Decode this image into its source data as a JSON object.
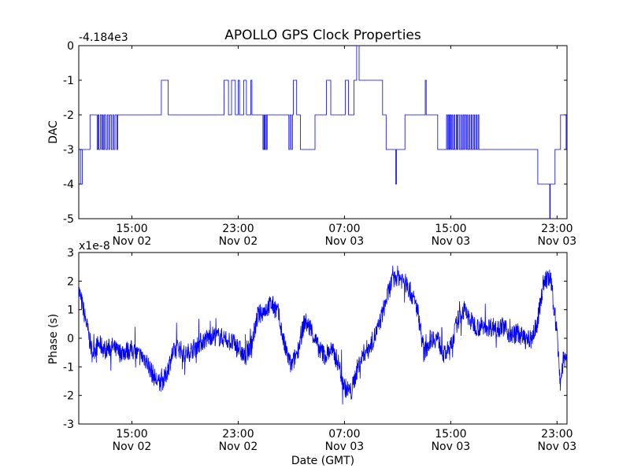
{
  "chart_data": [
    {
      "type": "line",
      "title": "APOLLO GPS Clock Properties",
      "offset_text": "-4.184e3",
      "ylabel": "DAC",
      "xlabel": "",
      "ylim": [
        -5,
        0
      ],
      "xlim": [
        "2012-11-02 11:00",
        "2012-11-03 23:45"
      ],
      "xticks": [
        {
          "x": "2012-11-02 15:00",
          "time": "15:00",
          "date": "Nov 02"
        },
        {
          "x": "2012-11-02 23:00",
          "time": "23:00",
          "date": "Nov 02"
        },
        {
          "x": "2012-11-03 07:00",
          "time": "07:00",
          "date": "Nov 03"
        },
        {
          "x": "2012-11-03 15:00",
          "time": "15:00",
          "date": "Nov 03"
        },
        {
          "x": "2012-11-03 23:00",
          "time": "23:00",
          "date": "Nov 03"
        }
      ],
      "yticks": [
        "0",
        "-1",
        "-2",
        "-3",
        "-4",
        "-5"
      ],
      "series": [
        {
          "color": "#0000ff",
          "step": true,
          "points": [
            [
              "2012-11-02 11:00",
              -3
            ],
            [
              "2012-11-02 11:08",
              -4
            ],
            [
              "2012-11-02 11:16",
              -3
            ],
            [
              "2012-11-02 11:45",
              -3
            ],
            [
              "2012-11-02 11:51",
              -2
            ],
            [
              "2012-11-02 12:19",
              -2
            ],
            [
              "2012-11-02 12:23",
              -3
            ],
            [
              "2012-11-02 12:27",
              -2
            ],
            [
              "2012-11-02 12:31",
              -3
            ],
            [
              "2012-11-02 12:37",
              -2
            ],
            [
              "2012-11-02 12:43",
              -3
            ],
            [
              "2012-11-02 12:47",
              -2
            ],
            [
              "2012-11-02 12:51",
              -3
            ],
            [
              "2012-11-02 12:56",
              -2
            ],
            [
              "2012-11-02 13:02",
              -3
            ],
            [
              "2012-11-02 13:09",
              -2
            ],
            [
              "2012-11-02 13:15",
              -3
            ],
            [
              "2012-11-02 13:20",
              -2
            ],
            [
              "2012-11-02 13:27",
              -3
            ],
            [
              "2012-11-02 13:33",
              -2
            ],
            [
              "2012-11-02 13:38",
              -3
            ],
            [
              "2012-11-02 13:44",
              -2
            ],
            [
              "2012-11-02 13:52",
              -3
            ],
            [
              "2012-11-02 13:56",
              -2
            ],
            [
              "2012-11-02 17:09",
              -2
            ],
            [
              "2012-11-02 17:13",
              -1
            ],
            [
              "2012-11-02 17:40",
              -1
            ],
            [
              "2012-11-02 17:44",
              -2
            ],
            [
              "2012-11-02 21:51",
              -2
            ],
            [
              "2012-11-02 21:56",
              -1
            ],
            [
              "2012-11-02 22:12",
              -1
            ],
            [
              "2012-11-02 22:16",
              -2
            ],
            [
              "2012-11-02 22:26",
              -2
            ],
            [
              "2012-11-02 22:30",
              -1
            ],
            [
              "2012-11-02 22:41",
              -1
            ],
            [
              "2012-11-02 22:47",
              -2
            ],
            [
              "2012-11-02 22:56",
              -2
            ],
            [
              "2012-11-02 23:00",
              -1
            ],
            [
              "2012-11-02 23:06",
              -2
            ],
            [
              "2012-11-02 23:21",
              -2
            ],
            [
              "2012-11-02 23:25",
              -1
            ],
            [
              "2012-11-02 23:31",
              -1
            ],
            [
              "2012-11-02 23:37",
              -2
            ],
            [
              "2012-11-02 23:51",
              -2
            ],
            [
              "2012-11-02 23:57",
              -1
            ],
            [
              "2012-11-03 00:02",
              -2
            ],
            [
              "2012-11-03 00:48",
              -2
            ],
            [
              "2012-11-03 00:52",
              -3
            ],
            [
              "2012-11-03 00:56",
              -2
            ],
            [
              "2012-11-03 00:59",
              -3
            ],
            [
              "2012-11-03 01:03",
              -2
            ],
            [
              "2012-11-03 01:07",
              -3
            ],
            [
              "2012-11-03 01:11",
              -2
            ],
            [
              "2012-11-03 02:45",
              -2
            ],
            [
              "2012-11-03 02:49",
              -3
            ],
            [
              "2012-11-03 02:54",
              -2
            ],
            [
              "2012-11-03 03:00",
              -3
            ],
            [
              "2012-11-03 03:05",
              -2
            ],
            [
              "2012-11-03 03:09",
              -1
            ],
            [
              "2012-11-03 03:18",
              -1
            ],
            [
              "2012-11-03 03:24",
              -2
            ],
            [
              "2012-11-03 03:37",
              -2
            ],
            [
              "2012-11-03 03:41",
              -3
            ],
            [
              "2012-11-03 04:41",
              -3
            ],
            [
              "2012-11-03 04:47",
              -2
            ],
            [
              "2012-11-03 05:35",
              -2
            ],
            [
              "2012-11-03 05:39",
              -1
            ],
            [
              "2012-11-03 05:54",
              -1
            ],
            [
              "2012-11-03 05:58",
              -2
            ],
            [
              "2012-11-03 06:58",
              -2
            ],
            [
              "2012-11-03 07:04",
              -1
            ],
            [
              "2012-11-03 07:14",
              -1
            ],
            [
              "2012-11-03 07:18",
              -2
            ],
            [
              "2012-11-03 07:37",
              -2
            ],
            [
              "2012-11-03 07:43",
              -1
            ],
            [
              "2012-11-03 07:51",
              -1
            ],
            [
              "2012-11-03 07:55",
              0
            ],
            [
              "2012-11-03 08:02",
              0
            ],
            [
              "2012-11-03 08:06",
              -1
            ],
            [
              "2012-11-03 09:48",
              -1
            ],
            [
              "2012-11-03 09:52",
              -2
            ],
            [
              "2012-11-03 10:02",
              -2
            ],
            [
              "2012-11-03 10:08",
              -3
            ],
            [
              "2012-11-03 10:47",
              -3
            ],
            [
              "2012-11-03 10:51",
              -4
            ],
            [
              "2012-11-03 10:55",
              -3
            ],
            [
              "2012-11-03 11:27",
              -3
            ],
            [
              "2012-11-03 11:33",
              -2
            ],
            [
              "2012-11-03 13:01",
              -2
            ],
            [
              "2012-11-03 13:05",
              -1
            ],
            [
              "2012-11-03 13:09",
              -2
            ],
            [
              "2012-11-03 13:55",
              -2
            ],
            [
              "2012-11-03 14:01",
              -3
            ],
            [
              "2012-11-03 14:37",
              -3
            ],
            [
              "2012-11-03 14:41",
              -2
            ],
            [
              "2012-11-03 14:45",
              -3
            ],
            [
              "2012-11-03 14:49",
              -2
            ],
            [
              "2012-11-03 14:53",
              -3
            ],
            [
              "2012-11-03 14:57",
              -2
            ],
            [
              "2012-11-03 15:01",
              -3
            ],
            [
              "2012-11-03 15:05",
              -2
            ],
            [
              "2012-11-03 15:09",
              -3
            ],
            [
              "2012-11-03 15:15",
              -2
            ],
            [
              "2012-11-03 15:19",
              -3
            ],
            [
              "2012-11-03 15:25",
              -2
            ],
            [
              "2012-11-03 15:29",
              -3
            ],
            [
              "2012-11-03 15:33",
              -2
            ],
            [
              "2012-11-03 15:39",
              -3
            ],
            [
              "2012-11-03 15:45",
              -2
            ],
            [
              "2012-11-03 15:49",
              -3
            ],
            [
              "2012-11-03 15:55",
              -2
            ],
            [
              "2012-11-03 15:59",
              -3
            ],
            [
              "2012-11-03 16:03",
              -2
            ],
            [
              "2012-11-03 16:09",
              -3
            ],
            [
              "2012-11-03 16:13",
              -2
            ],
            [
              "2012-11-03 16:17",
              -3
            ],
            [
              "2012-11-03 16:23",
              -2
            ],
            [
              "2012-11-03 16:27",
              -3
            ],
            [
              "2012-11-03 16:33",
              -2
            ],
            [
              "2012-11-03 16:37",
              -3
            ],
            [
              "2012-11-03 16:43",
              -2
            ],
            [
              "2012-11-03 16:47",
              -3
            ],
            [
              "2012-11-03 16:53",
              -2
            ],
            [
              "2012-11-03 16:57",
              -3
            ],
            [
              "2012-11-03 17:03",
              -2
            ],
            [
              "2012-11-03 17:07",
              -3
            ],
            [
              "2012-11-03 21:27",
              -3
            ],
            [
              "2012-11-03 21:33",
              -4
            ],
            [
              "2012-11-03 22:25",
              -4
            ],
            [
              "2012-11-03 22:27",
              -5
            ],
            [
              "2012-11-03 22:29",
              -4
            ],
            [
              "2012-11-03 22:45",
              -4
            ],
            [
              "2012-11-03 22:51",
              -3
            ],
            [
              "2012-11-03 23:12",
              -3
            ],
            [
              "2012-11-03 23:16",
              -2
            ],
            [
              "2012-11-03 23:37",
              -2
            ],
            [
              "2012-11-03 23:41",
              -3
            ],
            [
              "2012-11-03 23:45",
              -3
            ]
          ]
        }
      ]
    },
    {
      "type": "line",
      "title": "",
      "offset_text": "x1e-8",
      "ylabel": "Phase (s)",
      "xlabel": "Date (GMT)",
      "ylim": [
        -3,
        3
      ],
      "xlim": [
        "2012-11-02 11:00",
        "2012-11-03 23:45"
      ],
      "xticks": [
        {
          "x": "2012-11-02 15:00",
          "time": "15:00",
          "date": "Nov 02"
        },
        {
          "x": "2012-11-02 23:00",
          "time": "23:00",
          "date": "Nov 02"
        },
        {
          "x": "2012-11-03 07:00",
          "time": "07:00",
          "date": "Nov 03"
        },
        {
          "x": "2012-11-03 15:00",
          "time": "15:00",
          "date": "Nov 03"
        },
        {
          "x": "2012-11-03 23:00",
          "time": "23:00",
          "date": "Nov 03"
        }
      ],
      "yticks": [
        "3",
        "2",
        "1",
        "0",
        "-1",
        "-2",
        "-3"
      ],
      "series": [
        {
          "color": "#0000ff",
          "step": false,
          "points": [
            [
              "2012-11-02 11:00",
              1.7
            ],
            [
              "2012-11-02 11:15",
              1.2
            ],
            [
              "2012-11-02 11:35",
              0.5
            ],
            [
              "2012-11-02 12:00",
              -0.5
            ],
            [
              "2012-11-02 12:30",
              -0.2
            ],
            [
              "2012-11-02 13:00",
              -0.4
            ],
            [
              "2012-11-02 13:30",
              -0.3
            ],
            [
              "2012-11-02 14:00",
              -0.5
            ],
            [
              "2012-11-02 15:00",
              -0.4
            ],
            [
              "2012-11-02 15:30",
              -0.6
            ],
            [
              "2012-11-02 16:00",
              -0.7
            ],
            [
              "2012-11-02 16:30",
              -1.2
            ],
            [
              "2012-11-02 17:00",
              -1.6
            ],
            [
              "2012-11-02 17:30",
              -1.4
            ],
            [
              "2012-11-02 18:00",
              -0.6
            ],
            [
              "2012-11-02 18:30",
              -0.3
            ],
            [
              "2012-11-02 19:00",
              -0.6
            ],
            [
              "2012-11-02 20:00",
              -0.2
            ],
            [
              "2012-11-02 21:00",
              0.1
            ],
            [
              "2012-11-02 22:00",
              0.0
            ],
            [
              "2012-11-02 23:00",
              -0.3
            ],
            [
              "2012-11-02 23:30",
              -0.7
            ],
            [
              "2012-11-03 00:00",
              -0.2
            ],
            [
              "2012-11-03 00:30",
              0.8
            ],
            [
              "2012-11-03 01:00",
              1.0
            ],
            [
              "2012-11-03 01:30",
              1.2
            ],
            [
              "2012-11-03 02:00",
              0.9
            ],
            [
              "2012-11-03 02:30",
              -0.3
            ],
            [
              "2012-11-03 03:00",
              -1.0
            ],
            [
              "2012-11-03 03:30",
              -0.4
            ],
            [
              "2012-11-03 04:00",
              0.6
            ],
            [
              "2012-11-03 04:30",
              0.3
            ],
            [
              "2012-11-03 05:00",
              -0.3
            ],
            [
              "2012-11-03 05:30",
              -0.6
            ],
            [
              "2012-11-03 06:00",
              -0.4
            ],
            [
              "2012-11-03 06:30",
              -0.8
            ],
            [
              "2012-11-03 07:00",
              -1.7
            ],
            [
              "2012-11-03 07:30",
              -1.9
            ],
            [
              "2012-11-03 08:00",
              -1.0
            ],
            [
              "2012-11-03 08:30",
              -0.5
            ],
            [
              "2012-11-03 09:00",
              -0.2
            ],
            [
              "2012-11-03 09:30",
              0.3
            ],
            [
              "2012-11-03 10:00",
              1.1
            ],
            [
              "2012-11-03 10:30",
              1.9
            ],
            [
              "2012-11-03 11:00",
              2.2
            ],
            [
              "2012-11-03 11:30",
              2.0
            ],
            [
              "2012-11-03 12:00",
              1.6
            ],
            [
              "2012-11-03 12:30",
              1.0
            ],
            [
              "2012-11-03 13:00",
              -0.5
            ],
            [
              "2012-11-03 13:30",
              0.0
            ],
            [
              "2012-11-03 14:00",
              0.0
            ],
            [
              "2012-11-03 14:30",
              -0.6
            ],
            [
              "2012-11-03 15:00",
              -0.3
            ],
            [
              "2012-11-03 15:30",
              0.6
            ],
            [
              "2012-11-03 16:00",
              1.0
            ],
            [
              "2012-11-03 16:30",
              0.6
            ],
            [
              "2012-11-03 17:00",
              0.4
            ],
            [
              "2012-11-03 18:00",
              0.4
            ],
            [
              "2012-11-03 19:00",
              0.4
            ],
            [
              "2012-11-03 19:30",
              0.1
            ],
            [
              "2012-11-03 20:00",
              0.2
            ],
            [
              "2012-11-03 20:30",
              0.0
            ],
            [
              "2012-11-03 21:00",
              -0.1
            ],
            [
              "2012-11-03 21:30",
              0.5
            ],
            [
              "2012-11-03 22:00",
              2.0
            ],
            [
              "2012-11-03 22:30",
              2.1
            ],
            [
              "2012-11-03 23:00",
              0.2
            ],
            [
              "2012-11-03 23:15",
              -1.6
            ],
            [
              "2012-11-03 23:30",
              -0.6
            ],
            [
              "2012-11-03 23:45",
              -1.0
            ]
          ]
        }
      ]
    }
  ]
}
